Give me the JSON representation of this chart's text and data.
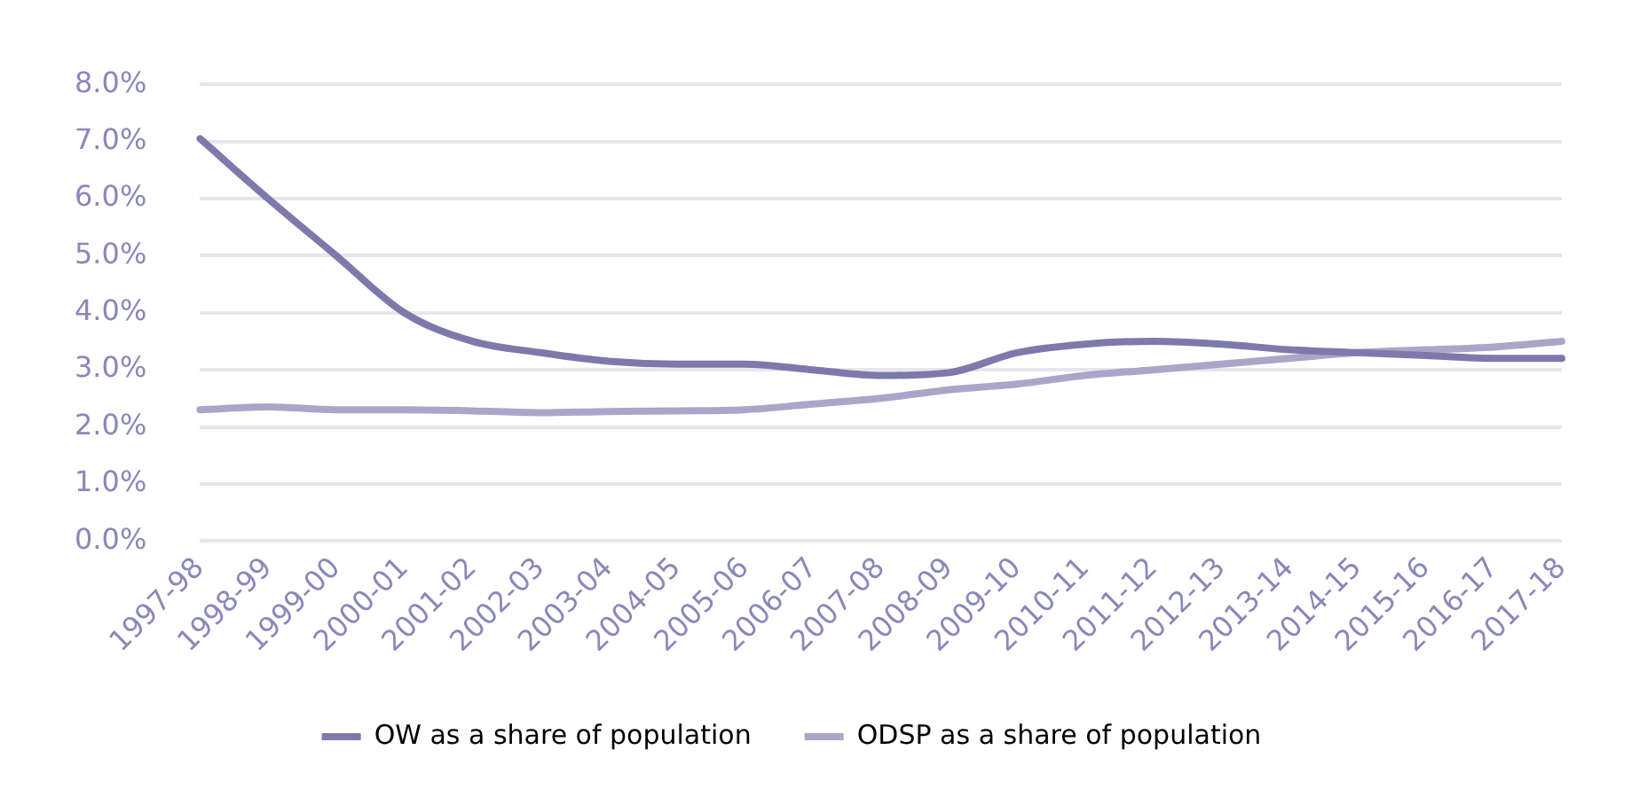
{
  "chart_data": {
    "type": "line",
    "categories": [
      "1997-98",
      "1998-99",
      "1999-00",
      "2000-01",
      "2001-02",
      "2002-03",
      "2003-04",
      "2004-05",
      "2005-06",
      "2006-07",
      "2007-08",
      "2008-09",
      "2009-10",
      "2010-11",
      "2011-12",
      "2012-13",
      "2013-14",
      "2014-15",
      "2015-16",
      "2016-17",
      "2017-18"
    ],
    "series": [
      {
        "name": "OW as a share of population",
        "color": "#7d7aab",
        "values": [
          7.05,
          6.0,
          5.0,
          4.0,
          3.5,
          3.3,
          3.15,
          3.1,
          3.1,
          3.0,
          2.9,
          2.95,
          3.3,
          3.45,
          3.5,
          3.45,
          3.35,
          3.3,
          3.25,
          3.2,
          3.2
        ]
      },
      {
        "name": "ODSP as a share of population",
        "color": "#a9a6c9",
        "values": [
          2.3,
          2.35,
          2.3,
          2.3,
          2.28,
          2.25,
          2.27,
          2.28,
          2.3,
          2.4,
          2.5,
          2.65,
          2.75,
          2.9,
          3.0,
          3.1,
          3.2,
          3.3,
          3.35,
          3.4,
          3.5
        ]
      }
    ],
    "ylim": [
      0,
      8
    ],
    "yticks": [
      {
        "value": 0,
        "label": "0.0%"
      },
      {
        "value": 1,
        "label": "1.0%"
      },
      {
        "value": 2,
        "label": "2.0%"
      },
      {
        "value": 3,
        "label": "3.0%"
      },
      {
        "value": 4,
        "label": "4.0%"
      },
      {
        "value": 5,
        "label": "5.0%"
      },
      {
        "value": 6,
        "label": "6.0%"
      },
      {
        "value": 7,
        "label": "7.0%"
      },
      {
        "value": 8,
        "label": "8.0%"
      }
    ],
    "grid": "y",
    "legend": "bottom",
    "marker": "none",
    "line_style": "solid"
  }
}
